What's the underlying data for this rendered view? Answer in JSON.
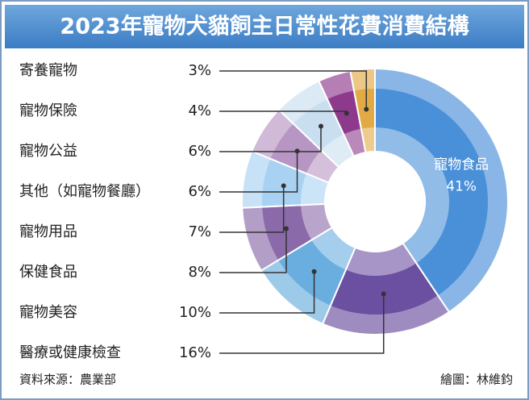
{
  "chart_data": {
    "type": "donut",
    "title": "2023年寵物犬貓飼主日常性花費消費結構",
    "categories": [
      "寵物食品",
      "醫療或健康檢查",
      "寵物美容",
      "保健食品",
      "寵物用品",
      "其他（如寵物餐廳）",
      "寵物公益",
      "寵物保險",
      "寄養寵物"
    ],
    "values": [
      41,
      16,
      10,
      8,
      7,
      6,
      6,
      4,
      3
    ],
    "value_labels": [
      "41%",
      "16%",
      "10%",
      "8%",
      "7%",
      "6%",
      "6%",
      "4%",
      "3%"
    ],
    "colors": [
      "#4a90d9",
      "#6b4fa0",
      "#6aaedf",
      "#8b6aaa",
      "#a9d2f2",
      "#b896c4",
      "#c9dff0",
      "#8e3a8c",
      "#e2aa44"
    ],
    "source": "資料來源：農業部",
    "credit": "繪圖：林維鈞"
  }
}
